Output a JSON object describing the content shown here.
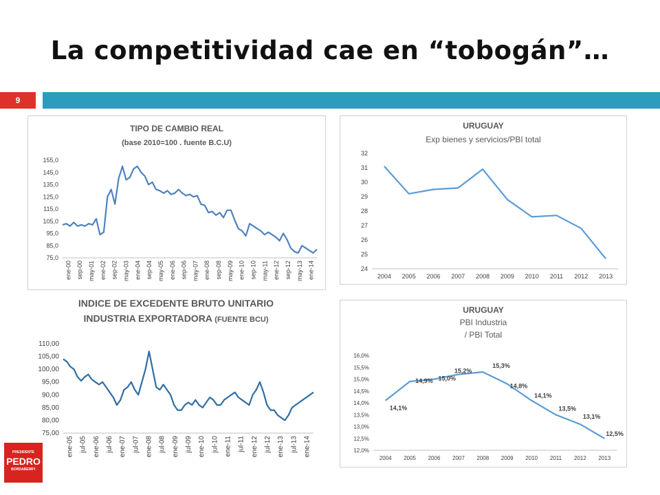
{
  "slide": {
    "title": "La competitividad cae en  “tobogán”…",
    "number": "9",
    "accent_color": "#2a9dbf",
    "number_color": "#e0302a",
    "logo": {
      "top": "PRESIDENTE",
      "name": "PEDRO",
      "bottom": "BORDABERRY"
    }
  },
  "chart_data": [
    {
      "type": "line",
      "title": "TIPO DE CAMBIO REAL",
      "subtitle": "(base 2010=100 . fuente B.C.U)",
      "ylim": [
        75,
        155
      ],
      "yticks": [
        "155,0",
        "145,0",
        "135,0",
        "125,0",
        "115,0",
        "105,0",
        "95,0",
        "85,0",
        "75,0"
      ],
      "xticks": [
        "ene-00",
        "sep-00",
        "may-01",
        "ene-02",
        "sep-02",
        "may-03",
        "ene-04",
        "sep-04",
        "may-05",
        "ene-06",
        "sep-06",
        "may-07",
        "ene-08",
        "sep-08",
        "may-09",
        "ene-10",
        "sep-10",
        "may-11",
        "ene-12",
        "sep-12",
        "may-13",
        "ene-14"
      ],
      "series": [
        {
          "values": [
            102,
            103,
            101,
            104,
            101,
            102,
            101,
            103,
            102,
            107,
            94,
            96,
            125,
            131,
            119,
            140,
            150,
            139,
            141,
            148,
            150,
            145,
            142,
            135,
            137,
            131,
            130,
            128,
            130,
            127,
            128,
            131,
            128,
            126,
            127,
            125,
            126,
            119,
            118,
            112,
            113,
            110,
            112,
            108,
            114,
            114,
            106,
            99,
            97,
            93,
            103,
            101,
            99,
            97,
            94,
            96,
            94,
            92,
            89,
            95,
            90,
            83,
            80,
            79,
            85,
            83,
            81,
            79,
            82
          ]
        }
      ],
      "line_color": "#4f81bd"
    },
    {
      "type": "line",
      "title": "URUGUAY",
      "subtitle": "Exp bienes y servicios/PBI total",
      "ylim": [
        24,
        32
      ],
      "yticks": [
        "32",
        "31",
        "30",
        "29",
        "28",
        "27",
        "26",
        "25",
        "24"
      ],
      "x": [
        "2004",
        "2005",
        "2006",
        "2007",
        "2008",
        "2009",
        "2010",
        "2011",
        "2012",
        "2013"
      ],
      "series": [
        {
          "values": [
            31.1,
            29.2,
            29.5,
            29.6,
            30.9,
            28.8,
            27.6,
            27.7,
            26.8,
            24.7
          ]
        }
      ],
      "line_color": "#5b9bd5"
    },
    {
      "type": "line",
      "title": "INDICE DE EXCEDENTE BRUTO UNITARIO",
      "subtitle": "INDUSTRIA EXPORTADORA",
      "subtitle_note": "(FUENTE BCU)",
      "ylim": [
        75,
        110
      ],
      "yticks": [
        "110,00",
        "105,00",
        "100,00",
        "95,00",
        "90,00",
        "85,00",
        "80,00",
        "75,00"
      ],
      "xticks": [
        "ene-05",
        "jul-05",
        "ene-06",
        "jul-06",
        "ene-07",
        "jul-07",
        "ene-08",
        "jul-08",
        "ene-09",
        "jul-09",
        "ene-10",
        "jul-10",
        "ene-11",
        "jul-11",
        "ene-12",
        "jul-12",
        "ene-13",
        "jul-13",
        "ene-14"
      ],
      "series": [
        {
          "values": [
            104,
            103,
            101,
            100,
            97,
            95.5,
            97,
            98,
            96,
            95,
            94,
            95,
            93,
            91,
            89,
            86,
            88,
            92,
            93,
            95,
            92,
            90,
            95,
            100,
            107,
            100,
            93,
            92,
            94,
            92,
            90,
            86,
            84,
            84,
            86,
            87,
            86,
            88,
            86,
            85,
            87,
            89,
            88,
            86,
            86,
            88,
            89,
            90,
            91,
            89,
            88,
            87,
            86,
            90,
            92,
            95,
            91,
            86,
            84,
            84,
            82,
            81,
            80,
            82,
            85,
            86,
            87,
            88,
            89,
            90,
            91
          ]
        }
      ],
      "line_color": "#2e6da4"
    },
    {
      "type": "line",
      "title": "URUGUAY",
      "subtitle": "PBI Industria",
      "subtitle2": "/ PBI Total",
      "ylim": [
        12.0,
        16.0
      ],
      "yticks": [
        "16,0%",
        "15,5%",
        "15,0%",
        "14,5%",
        "14,0%",
        "13,5%",
        "13,0%",
        "12,5%",
        "12,0%"
      ],
      "x": [
        "2004",
        "2005",
        "2006",
        "2007",
        "2008",
        "2009",
        "2010",
        "2011",
        "2012",
        "2013"
      ],
      "series": [
        {
          "values": [
            14.1,
            14.9,
            15.0,
            15.2,
            15.3,
            14.8,
            14.1,
            13.5,
            13.1,
            12.5
          ]
        }
      ],
      "data_labels": [
        "14,1%",
        "14,9%",
        "15,0%",
        "15,2%",
        "15,3%",
        "14,8%",
        "14,1%",
        "13,5%",
        "13,1%",
        "12,5%"
      ],
      "line_color": "#5b9bd5"
    }
  ]
}
